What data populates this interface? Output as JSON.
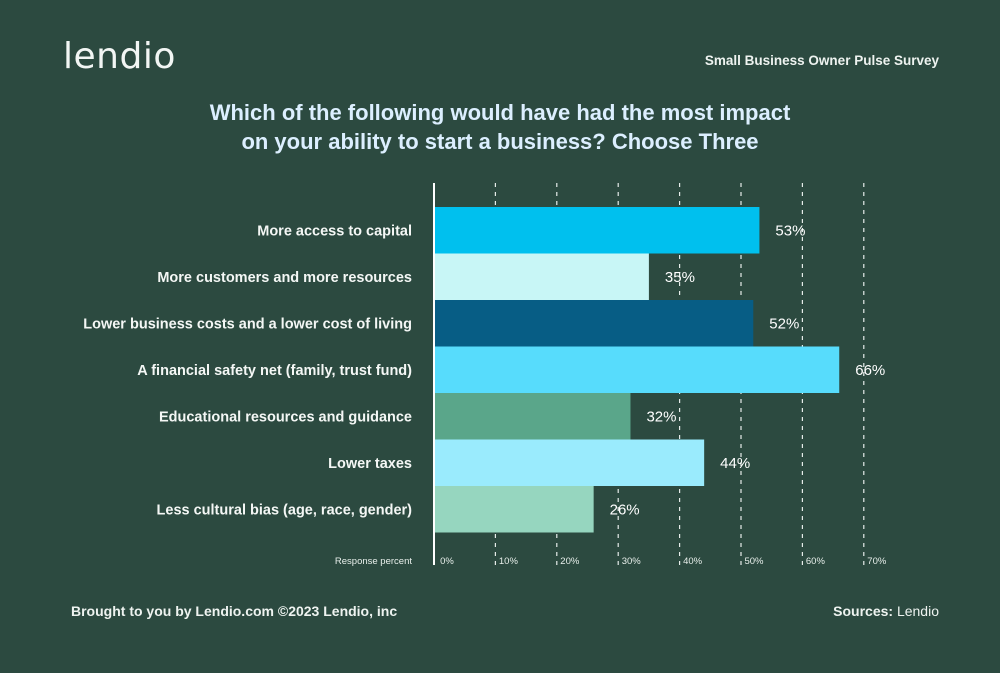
{
  "header": {
    "logo": "lendio",
    "survey": "Small Business Owner Pulse Survey"
  },
  "footer": {
    "credit": "Brought to you by Lendio.com ©2023 Lendio, inc",
    "sources_label": "Sources:",
    "sources_value": "Lendio"
  },
  "chart_data": {
    "type": "bar",
    "orientation": "horizontal",
    "title_lines": [
      "Which of the following would have had the most impact",
      "on your ability to start a business? Choose Three"
    ],
    "xlabel": "Response percent",
    "xlim": [
      0,
      70
    ],
    "ticks": [
      0,
      10,
      20,
      30,
      40,
      50,
      60,
      70
    ],
    "tick_labels": [
      "0%",
      "10%",
      "20%",
      "30%",
      "40%",
      "50%",
      "60%",
      "70%"
    ],
    "grid": "vertical-dashed",
    "categories": [
      "More access to capital",
      "More customers and more resources",
      "Lower business costs and a lower cost of living",
      "A financial safety net (family, trust fund)",
      "Educational resources and guidance",
      "Lower taxes",
      "Less cultural bias (age, race, gender)"
    ],
    "values": [
      53,
      35,
      52,
      66,
      32,
      44,
      26
    ],
    "value_labels": [
      "53%",
      "35%",
      "52%",
      "66%",
      "32%",
      "44%",
      "26%"
    ],
    "colors": [
      "#00c0ee",
      "#c8f6f6",
      "#075d85",
      "#57dcfc",
      "#5aa68a",
      "#9aebfd",
      "#96d6bf"
    ]
  }
}
